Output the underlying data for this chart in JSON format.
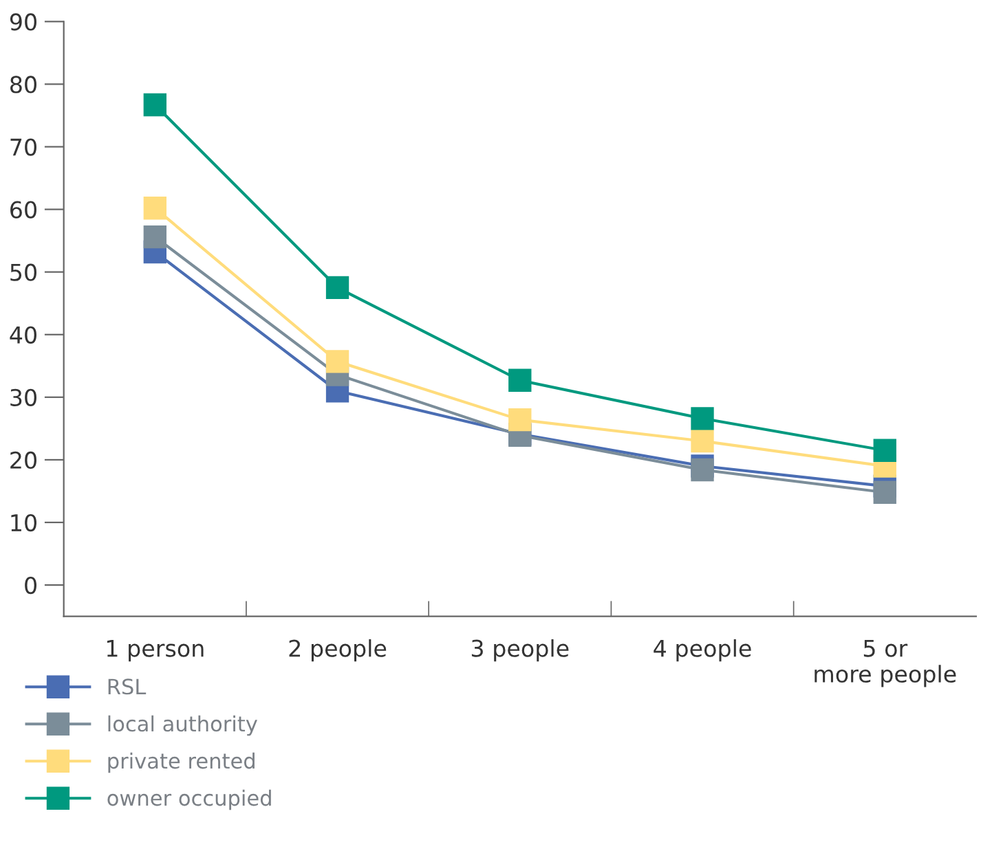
{
  "chart_data": {
    "type": "line",
    "categories": [
      "1 person",
      "2 people",
      "3 people",
      "4 people",
      "5 or\nmore people"
    ],
    "series": [
      {
        "name": "RSL",
        "color": "#4a6db3",
        "values": [
          53.2,
          31,
          24.1,
          19,
          15.8
        ]
      },
      {
        "name": "local authority",
        "color": "#7b8d99",
        "values": [
          55.6,
          33.6,
          23.9,
          18.4,
          14.8
        ]
      },
      {
        "name": "private rented",
        "color": "#ffdc7c",
        "values": [
          60.2,
          35.7,
          26.4,
          23,
          19
        ]
      },
      {
        "name": "owner occupied",
        "color": "#00997f",
        "values": [
          76.7,
          47.5,
          32.7,
          26.6,
          21.5
        ]
      }
    ],
    "ylim": [
      -5,
      90
    ],
    "yticks": [
      0,
      10,
      20,
      30,
      40,
      50,
      60,
      70,
      80,
      90
    ],
    "grid": false,
    "legend": "bottom left",
    "marker": "square",
    "line_style": "solid"
  }
}
